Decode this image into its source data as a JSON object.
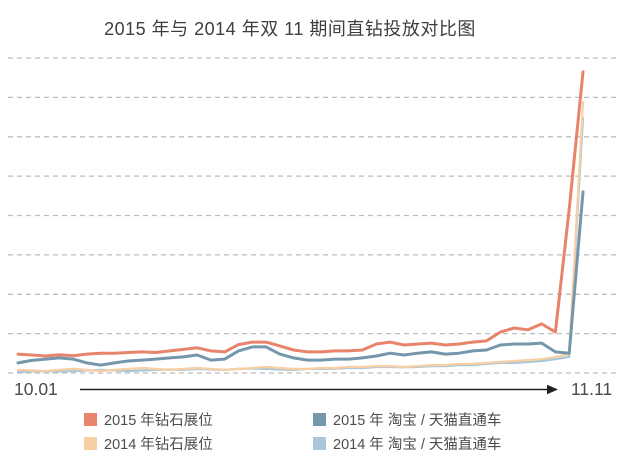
{
  "title": "2015 年与 2014 年双 11 期间直钻投放对比图",
  "x_axis": {
    "start_label": "10.01",
    "end_label": "11.11"
  },
  "legend": [
    {
      "id": "2015-zuanshi",
      "label": "2015 年钻石展位",
      "color": "#E8846C"
    },
    {
      "id": "2015-zhitongche",
      "label": "2015 年 淘宝 / 天猫直通车",
      "color": "#7597AB"
    },
    {
      "id": "2014-zuanshi",
      "label": "2014 年钻石展位",
      "color": "#F7CFA3"
    },
    {
      "id": "2014-zhitongche",
      "label": "2014 年 淘宝 / 天猫直通车",
      "color": "#A9C7D9"
    }
  ],
  "chart_data": {
    "type": "line",
    "title": "2015 年与 2014 年双 11 期间直钻投放对比图",
    "xlabel": "",
    "ylabel": "",
    "x_tick_labels_visible": [
      "10.01",
      "11.11"
    ],
    "y_axis_labels_visible": false,
    "ylim": [
      0,
      100
    ],
    "y_unit": "relative scale (no y-axis values shown); 0 = bottom gridline, 100 = top gridline",
    "grid": {
      "horizontal_dashed_gridlines": 9
    },
    "legend_position": "bottom",
    "x": [
      "10.01",
      "10.02",
      "10.03",
      "10.04",
      "10.05",
      "10.06",
      "10.07",
      "10.08",
      "10.09",
      "10.10",
      "10.11",
      "10.12",
      "10.13",
      "10.14",
      "10.15",
      "10.16",
      "10.17",
      "10.18",
      "10.19",
      "10.20",
      "10.21",
      "10.22",
      "10.23",
      "10.24",
      "10.25",
      "10.26",
      "10.27",
      "10.28",
      "10.29",
      "10.30",
      "10.31",
      "11.01",
      "11.02",
      "11.03",
      "11.04",
      "11.05",
      "11.06",
      "11.07",
      "11.08",
      "11.09",
      "11.10",
      "11.11"
    ],
    "series": [
      {
        "id": "2015-zuanshi",
        "name": "2015 年钻石展位",
        "color": "#E8846C",
        "width": 3,
        "values": [
          6.0,
          5.7,
          5.4,
          5.8,
          5.5,
          6.0,
          6.3,
          6.3,
          6.5,
          6.7,
          6.5,
          7.0,
          7.5,
          8.0,
          7.0,
          6.7,
          9.0,
          9.8,
          9.8,
          8.6,
          7.3,
          6.7,
          6.7,
          7.0,
          7.0,
          7.3,
          9.2,
          9.8,
          8.9,
          9.2,
          9.5,
          8.9,
          9.2,
          9.8,
          10.2,
          13.0,
          14.3,
          13.7,
          15.6,
          13.0,
          52.0,
          95.6
        ]
      },
      {
        "id": "2015-zhitongche",
        "name": "2015 年 淘宝 / 天猫直通车",
        "color": "#7597AB",
        "width": 3,
        "values": [
          3.2,
          4.0,
          4.4,
          4.8,
          4.4,
          3.2,
          2.5,
          3.2,
          3.8,
          4.1,
          4.4,
          4.8,
          5.1,
          5.7,
          4.1,
          4.4,
          7.0,
          8.3,
          8.3,
          6.0,
          4.8,
          4.1,
          4.1,
          4.4,
          4.4,
          4.8,
          5.4,
          6.3,
          5.7,
          6.3,
          6.7,
          6.0,
          6.3,
          7.0,
          7.3,
          8.9,
          9.2,
          9.2,
          9.5,
          6.7,
          6.3,
          57.5
        ]
      },
      {
        "id": "2014-zuanshi",
        "name": "2014 年钻石展位",
        "color": "#F7CFA3",
        "width": 2.2,
        "values": [
          1.0,
          0.8,
          0.6,
          1.0,
          1.3,
          1.0,
          0.6,
          1.0,
          1.3,
          1.6,
          1.3,
          1.0,
          1.3,
          1.6,
          1.3,
          1.0,
          1.3,
          1.6,
          1.9,
          1.6,
          1.3,
          1.3,
          1.6,
          1.6,
          1.9,
          1.9,
          2.2,
          2.2,
          1.9,
          2.2,
          2.5,
          2.5,
          2.9,
          2.9,
          3.2,
          3.5,
          3.8,
          4.1,
          4.4,
          5.1,
          6.0,
          86.0
        ]
      },
      {
        "id": "2014-zhitongche",
        "name": "2014 年 淘宝 / 天猫直通车",
        "color": "#A9C7D9",
        "width": 2.2,
        "values": [
          0.3,
          0.5,
          0.6,
          0.5,
          0.6,
          0.8,
          1.0,
          0.8,
          0.6,
          0.8,
          1.0,
          1.1,
          1.0,
          1.3,
          1.1,
          1.0,
          1.3,
          1.4,
          1.3,
          1.1,
          1.0,
          1.3,
          1.3,
          1.4,
          1.6,
          1.6,
          1.9,
          1.9,
          1.8,
          1.9,
          2.2,
          2.2,
          2.5,
          2.5,
          2.9,
          3.2,
          3.2,
          3.5,
          3.8,
          4.4,
          5.1,
          81.0
        ]
      }
    ]
  }
}
